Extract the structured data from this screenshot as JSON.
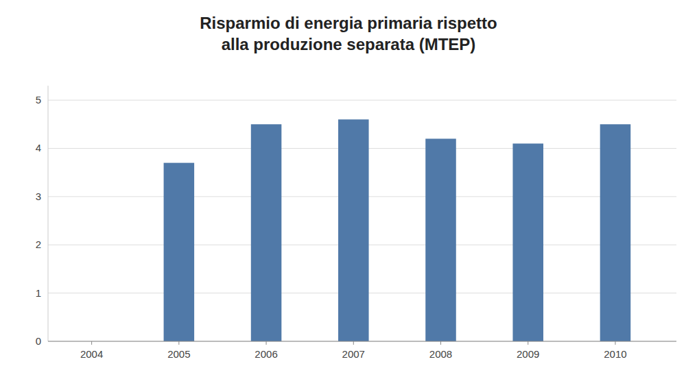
{
  "chart_data": {
    "type": "bar",
    "title": "Risparmio di energia primaria rispetto\nalla produzione separata (MTEP)",
    "x": [
      2004,
      2005,
      2006,
      2007,
      2008,
      2009,
      2010
    ],
    "values": [
      0,
      3.7,
      4.5,
      4.6,
      4.2,
      4.1,
      4.5
    ],
    "color": "#5079a8",
    "xlim": [
      2003.5,
      2010.7
    ],
    "xticks": [
      2004,
      2005,
      2006,
      2007,
      2008,
      2009,
      2010
    ],
    "ylim": [
      0,
      5.3
    ],
    "yticks": [
      0,
      1,
      2,
      3,
      4,
      5
    ],
    "grid": true
  }
}
